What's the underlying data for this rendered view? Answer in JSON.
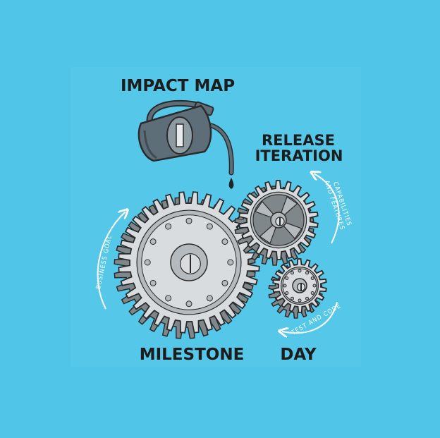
{
  "labels": {
    "impact_map": "IMPACT MAP",
    "release_line1": "RELEASE",
    "release_line2": "ITERATION",
    "milestone": "MILESTONE",
    "day": "DAY",
    "business_goal": "BUSINESS GOAL",
    "capabilities_line1": "CAPABILITIES",
    "capabilities_line2": "AND FEATURES",
    "test_and_code": "TEST AND CODE"
  },
  "colors": {
    "background": "#51c5e8",
    "panel": "#55c8ea",
    "gear_light": "#d8dcde",
    "gear_mid": "#b4babd",
    "gear_dark": "#7f878b",
    "oil_can": "#5d6e78",
    "outline": "#2a2a2a",
    "arrow": "#ffffff"
  },
  "icons": [
    "oil-can-icon",
    "large-gear-icon",
    "medium-gear-icon",
    "small-gear-icon",
    "oil-drop-icon"
  ]
}
